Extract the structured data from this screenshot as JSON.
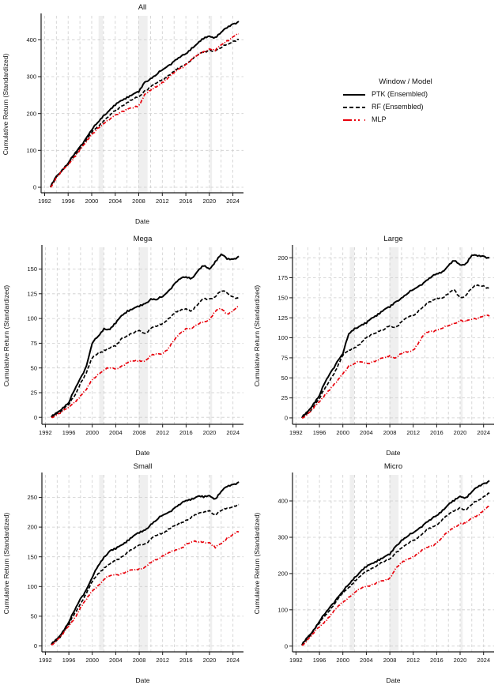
{
  "page": {
    "background": "#ffffff"
  },
  "legend": {
    "title": "Window / Model",
    "entries": [
      {
        "label": "PTK (Ensembled)",
        "color": "#000000",
        "style": "solid"
      },
      {
        "label": "RF (Ensembled)",
        "color": "#000000",
        "style": "dashed"
      },
      {
        "label": "MLP",
        "color": "#e8000b",
        "style": "dashdot"
      }
    ]
  },
  "chart_shared": {
    "xlabel": "Date",
    "ylabel": "Cumulative Return (Standardized)",
    "x": [
      1993,
      1994,
      1995,
      1996,
      1997,
      1998,
      1999,
      2000,
      2001,
      2002,
      2003,
      2004,
      2005,
      2006,
      2007,
      2008,
      2009,
      2010,
      2011,
      2012,
      2013,
      2014,
      2015,
      2016,
      2017,
      2018,
      2019,
      2020,
      2021,
      2022,
      2023,
      2024,
      2025
    ],
    "xlim": [
      1991.4,
      2025.8
    ],
    "xticks": [
      1992,
      1996,
      2000,
      2004,
      2008,
      2012,
      2016,
      2020,
      2024
    ],
    "grid_x_start": 1992,
    "grid_x_end": 2024,
    "grid_x_step": 2,
    "grid_on": true,
    "grid_color": "#cdcdcd",
    "band_color": "#e2e2e2",
    "recession_bands": [
      [
        2001.17,
        2001.92
      ],
      [
        2007.92,
        2009.5
      ],
      [
        2020.08,
        2020.45
      ]
    ],
    "spine_color": "#1a1a1a",
    "legend_position": "right-of-top-panel"
  },
  "chart_data": [
    {
      "id": "all",
      "type": "line",
      "title": "All",
      "ylim": [
        -15,
        465
      ],
      "yticks": [
        0,
        100,
        200,
        300,
        400
      ],
      "series": [
        {
          "name": "PTK (Ensembled)",
          "color": "#000000",
          "style": "solid",
          "values": [
            0,
            30,
            48,
            65,
            88,
            110,
            132,
            155,
            175,
            195,
            208,
            222,
            235,
            245,
            252,
            258,
            285,
            295,
            305,
            318,
            330,
            342,
            352,
            362,
            378,
            390,
            402,
            410,
            407,
            420,
            432,
            443,
            450
          ]
        },
        {
          "name": "RF (Ensembled)",
          "color": "#000000",
          "style": "dashed",
          "values": [
            0,
            28,
            46,
            62,
            85,
            105,
            125,
            148,
            165,
            180,
            193,
            207,
            220,
            230,
            238,
            245,
            262,
            272,
            282,
            292,
            303,
            314,
            324,
            334,
            348,
            358,
            366,
            372,
            370,
            378,
            388,
            396,
            401
          ]
        },
        {
          "name": "MLP",
          "color": "#e8000b",
          "style": "dashdot",
          "values": [
            0,
            27,
            44,
            60,
            82,
            102,
            120,
            142,
            160,
            172,
            183,
            196,
            205,
            210,
            215,
            222,
            252,
            262,
            272,
            285,
            297,
            310,
            322,
            333,
            347,
            358,
            368,
            375,
            370,
            386,
            398,
            408,
            416
          ]
        }
      ]
    },
    {
      "id": "mega",
      "type": "line",
      "title": "Mega",
      "ylim": [
        -7,
        172
      ],
      "yticks": [
        0,
        25,
        50,
        75,
        100,
        125,
        150
      ],
      "series": [
        {
          "name": "PTK (Ensembled)",
          "color": "#000000",
          "style": "solid",
          "values": [
            0,
            5,
            10,
            15,
            28,
            40,
            52,
            75,
            82,
            90,
            89,
            95,
            103,
            108,
            110,
            112,
            115,
            120,
            119,
            122,
            128,
            135,
            140,
            142,
            141,
            148,
            153,
            150,
            158,
            165,
            160,
            160,
            163
          ]
        },
        {
          "name": "RF (Ensembled)",
          "color": "#000000",
          "style": "dashed",
          "values": [
            0,
            4,
            8,
            13,
            22,
            35,
            45,
            60,
            65,
            68,
            70,
            72,
            80,
            83,
            85,
            88,
            85,
            90,
            92,
            95,
            100,
            105,
            108,
            110,
            108,
            114,
            120,
            120,
            122,
            128,
            126,
            122,
            120
          ]
        },
        {
          "name": "MLP",
          "color": "#e8000b",
          "style": "dashdot",
          "values": [
            0,
            3,
            6,
            10,
            16,
            22,
            28,
            38,
            44,
            48,
            50,
            49,
            52,
            55,
            57,
            58,
            57,
            62,
            64,
            65,
            70,
            78,
            85,
            90,
            90,
            94,
            97,
            99,
            107,
            110,
            105,
            108,
            112
          ]
        }
      ]
    },
    {
      "id": "large",
      "type": "line",
      "title": "Large",
      "ylim": [
        -8,
        213
      ],
      "yticks": [
        0,
        25,
        50,
        75,
        100,
        125,
        150,
        175,
        200
      ],
      "series": [
        {
          "name": "PTK (Ensembled)",
          "color": "#000000",
          "style": "solid",
          "values": [
            0,
            8,
            18,
            28,
            45,
            58,
            70,
            80,
            105,
            112,
            115,
            118,
            125,
            130,
            135,
            138,
            145,
            150,
            155,
            160,
            165,
            170,
            175,
            180,
            183,
            190,
            196,
            191,
            193,
            203,
            202,
            202,
            200
          ]
        },
        {
          "name": "RF (Ensembled)",
          "color": "#000000",
          "style": "dashed",
          "values": [
            0,
            6,
            14,
            24,
            38,
            50,
            62,
            78,
            85,
            88,
            92,
            100,
            105,
            108,
            110,
            115,
            113,
            120,
            125,
            128,
            135,
            140,
            145,
            150,
            150,
            155,
            160,
            150,
            153,
            162,
            166,
            165,
            161
          ]
        },
        {
          "name": "MLP",
          "color": "#e8000b",
          "style": "dashdot",
          "values": [
            0,
            5,
            12,
            20,
            30,
            38,
            45,
            55,
            65,
            68,
            70,
            68,
            70,
            72,
            75,
            78,
            75,
            80,
            82,
            85,
            95,
            105,
            108,
            110,
            112,
            115,
            118,
            122,
            120,
            123,
            125,
            128,
            127
          ]
        }
      ]
    },
    {
      "id": "small",
      "type": "line",
      "title": "Small",
      "ylim": [
        -10,
        288
      ],
      "yticks": [
        0,
        50,
        100,
        150,
        200,
        250
      ],
      "series": [
        {
          "name": "PTK (Ensembled)",
          "color": "#000000",
          "style": "solid",
          "values": [
            2,
            12,
            25,
            40,
            60,
            80,
            95,
            115,
            135,
            150,
            160,
            163,
            170,
            178,
            185,
            190,
            195,
            205,
            212,
            220,
            225,
            232,
            238,
            245,
            248,
            252,
            250,
            253,
            248,
            260,
            268,
            272,
            276
          ]
        },
        {
          "name": "RF (Ensembled)",
          "color": "#000000",
          "style": "dashed",
          "values": [
            2,
            10,
            22,
            36,
            55,
            72,
            88,
            108,
            122,
            132,
            138,
            143,
            150,
            158,
            163,
            170,
            172,
            180,
            186,
            190,
            197,
            202,
            205,
            212,
            218,
            222,
            225,
            228,
            220,
            228,
            232,
            235,
            238
          ]
        },
        {
          "name": "MLP",
          "color": "#e8000b",
          "style": "dashdot",
          "values": [
            2,
            10,
            20,
            33,
            48,
            65,
            78,
            92,
            102,
            112,
            118,
            120,
            122,
            125,
            128,
            130,
            133,
            140,
            145,
            152,
            157,
            160,
            163,
            172,
            175,
            175,
            175,
            174,
            165,
            172,
            182,
            188,
            192
          ]
        }
      ]
    },
    {
      "id": "micro",
      "type": "line",
      "title": "Micro",
      "ylim": [
        -16,
        472
      ],
      "yticks": [
        0,
        100,
        200,
        300,
        400
      ],
      "series": [
        {
          "name": "PTK (Ensembled)",
          "color": "#000000",
          "style": "solid",
          "values": [
            2,
            25,
            45,
            68,
            90,
            112,
            132,
            150,
            170,
            190,
            205,
            218,
            228,
            238,
            245,
            252,
            275,
            292,
            302,
            312,
            325,
            338,
            348,
            360,
            375,
            390,
            400,
            413,
            410,
            425,
            438,
            448,
            456
          ]
        },
        {
          "name": "RF (Ensembled)",
          "color": "#000000",
          "style": "dashed",
          "values": [
            2,
            22,
            42,
            63,
            85,
            105,
            125,
            145,
            162,
            180,
            193,
            205,
            215,
            225,
            232,
            240,
            258,
            270,
            280,
            292,
            303,
            315,
            325,
            335,
            350,
            362,
            372,
            382,
            375,
            390,
            402,
            412,
            422
          ]
        },
        {
          "name": "MLP",
          "color": "#e8000b",
          "style": "dashdot",
          "values": [
            2,
            18,
            35,
            52,
            70,
            88,
            105,
            120,
            135,
            148,
            158,
            165,
            170,
            175,
            180,
            188,
            215,
            228,
            238,
            248,
            258,
            268,
            275,
            285,
            300,
            315,
            328,
            338,
            338,
            352,
            362,
            375,
            385
          ]
        }
      ]
    }
  ]
}
